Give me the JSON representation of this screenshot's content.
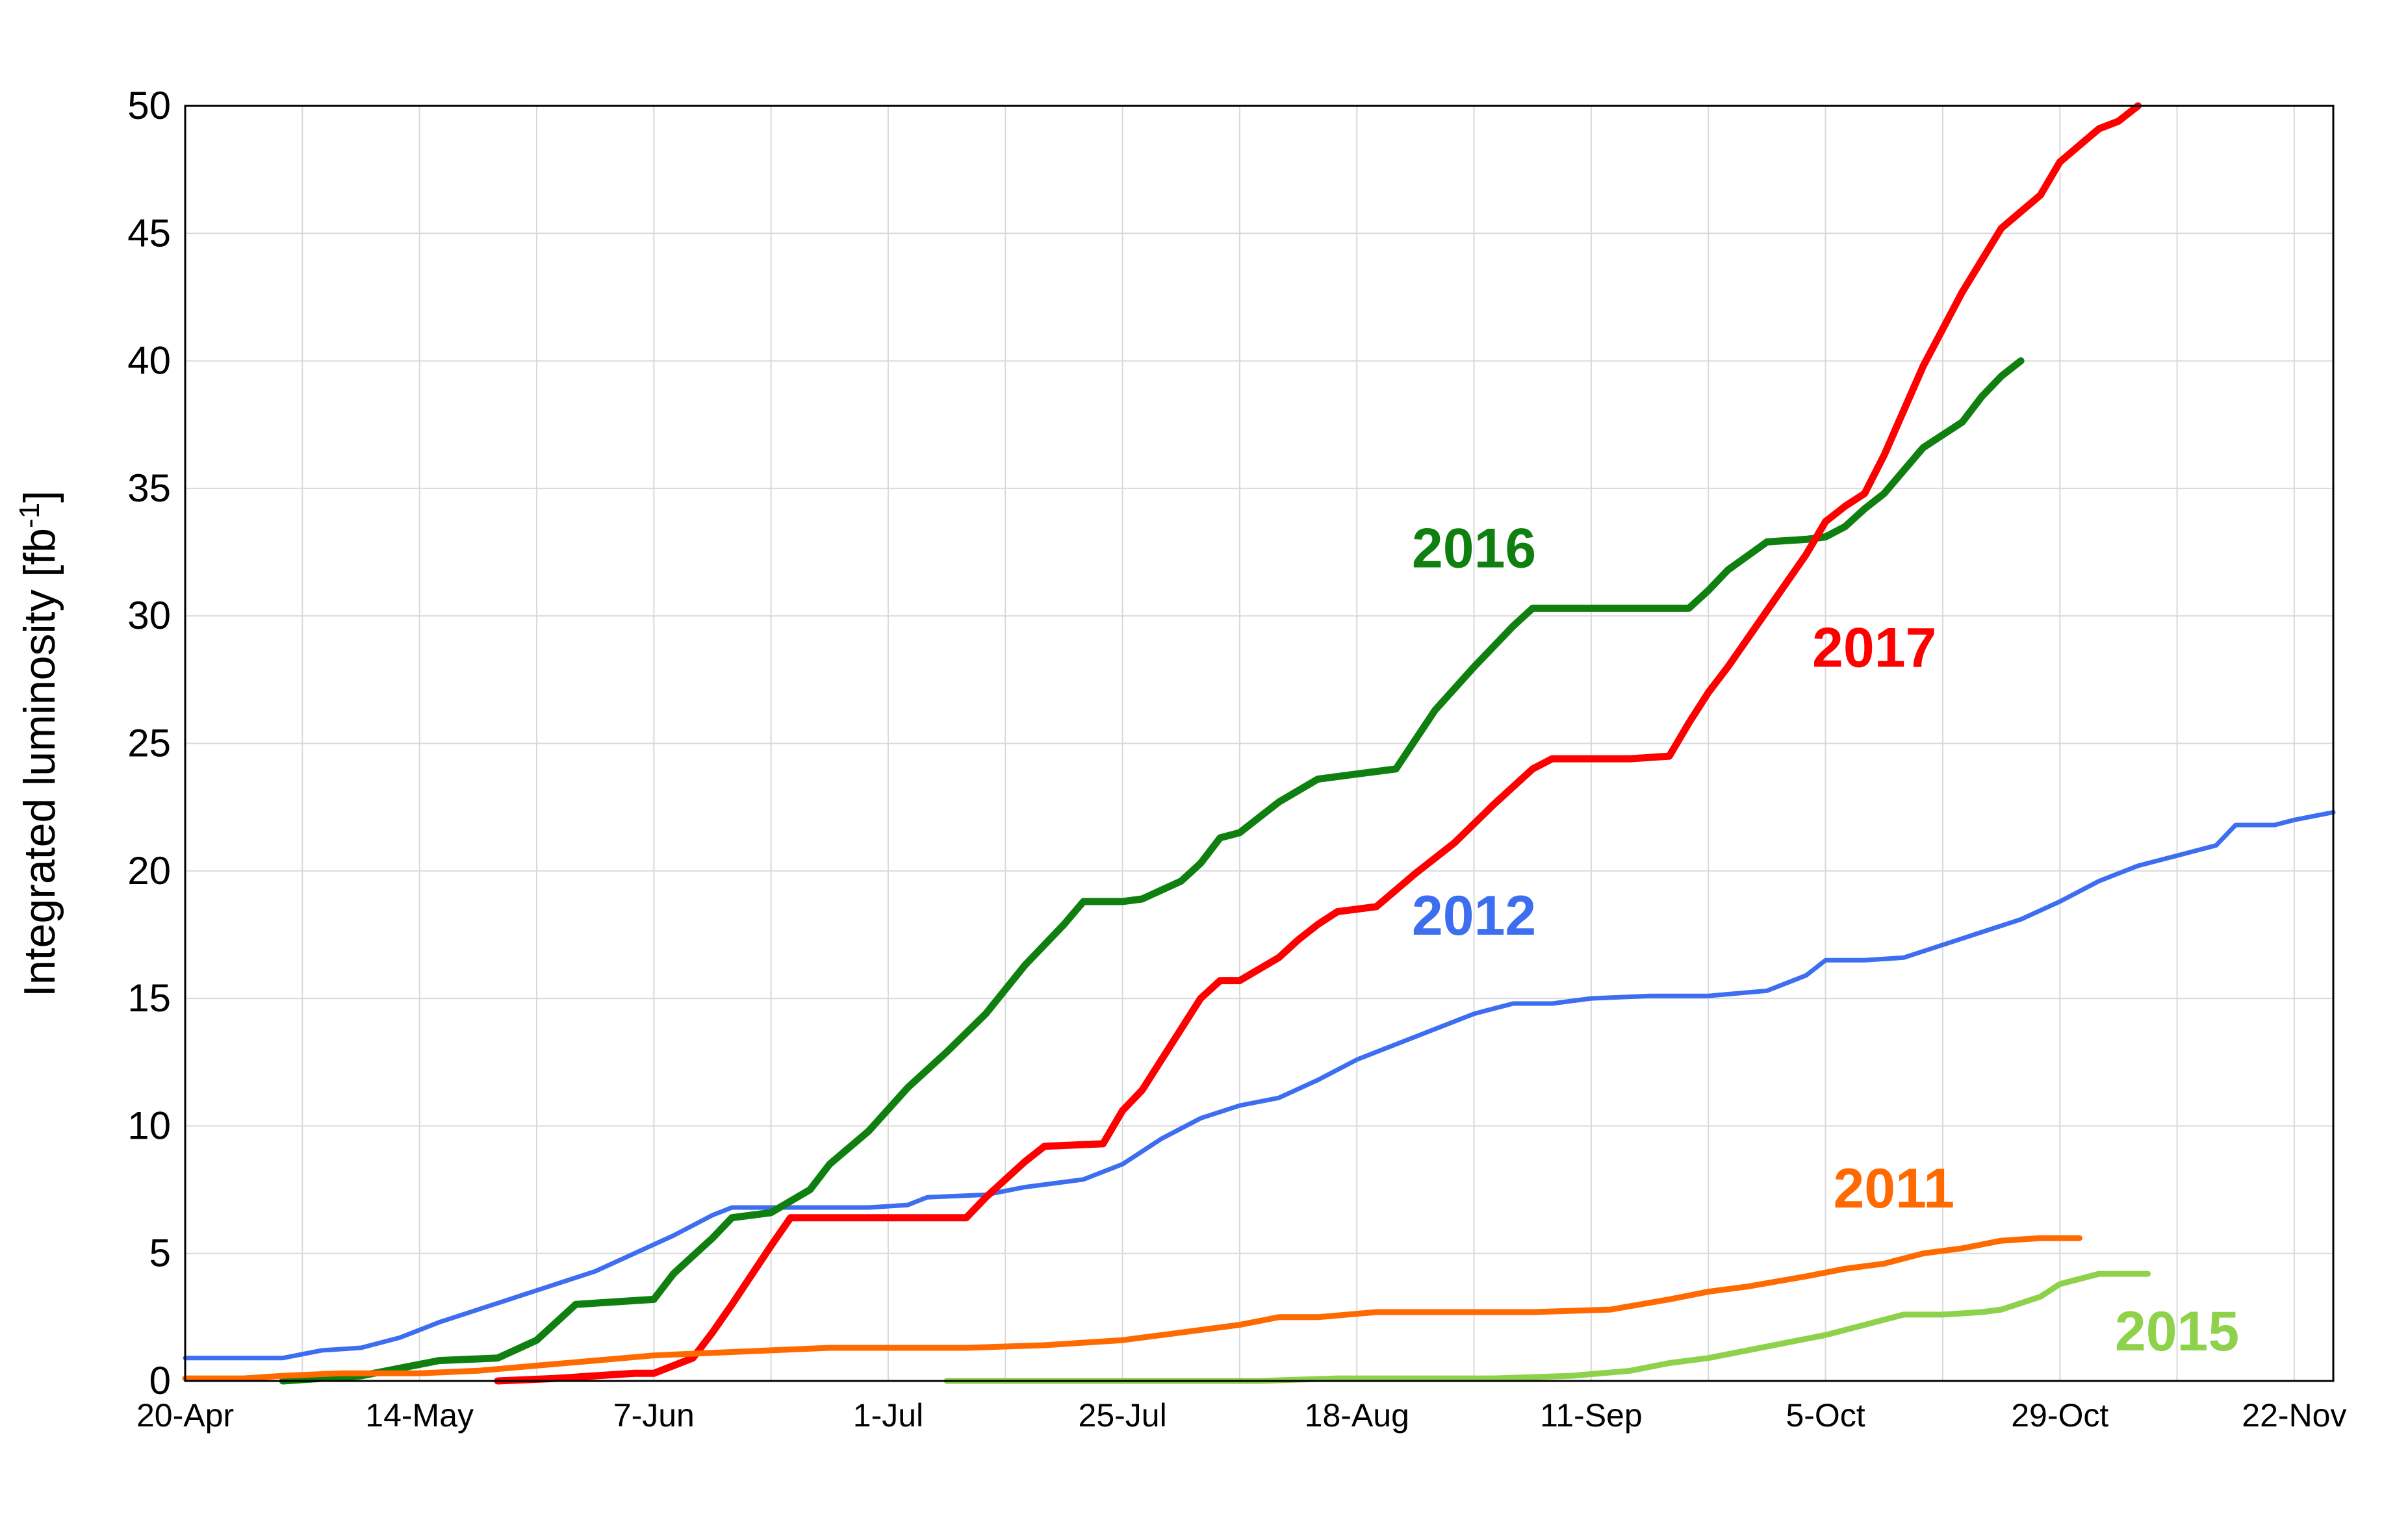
{
  "chart_data": {
    "type": "line",
    "title": "",
    "xlabel": "",
    "ylabel": "Integrated luminosity [fb",
    "ylabel_sup": "-1",
    "ylabel_close": "]",
    "x_unit": "day-of-year",
    "xlim": [
      110,
      330
    ],
    "ylim": [
      0,
      50
    ],
    "yticks": [
      0,
      5,
      10,
      15,
      20,
      25,
      30,
      35,
      40,
      45,
      50
    ],
    "xticks": [
      {
        "label": "20-Apr",
        "day": 110
      },
      {
        "label": "14-May",
        "day": 134
      },
      {
        "label": "7-Jun",
        "day": 158
      },
      {
        "label": "1-Jul",
        "day": 182
      },
      {
        "label": "25-Jul",
        "day": 206
      },
      {
        "label": "18-Aug",
        "day": 230
      },
      {
        "label": "11-Sep",
        "day": 254
      },
      {
        "label": "5-Oct",
        "day": 278
      },
      {
        "label": "29-Oct",
        "day": 302
      },
      {
        "label": "22-Nov",
        "day": 326
      }
    ],
    "grid": true,
    "legend": "none",
    "series": [
      {
        "name": "2012",
        "color": "#3d6ef0",
        "width": 7,
        "label_at": {
          "day": 242,
          "y": 17.5
        },
        "points": [
          [
            110,
            0.9
          ],
          [
            120,
            0.9
          ],
          [
            124,
            1.2
          ],
          [
            128,
            1.3
          ],
          [
            132,
            1.7
          ],
          [
            136,
            2.3
          ],
          [
            140,
            2.8
          ],
          [
            144,
            3.3
          ],
          [
            148,
            3.8
          ],
          [
            152,
            4.3
          ],
          [
            156,
            5.0
          ],
          [
            160,
            5.7
          ],
          [
            164,
            6.5
          ],
          [
            166,
            6.8
          ],
          [
            172,
            6.8
          ],
          [
            180,
            6.8
          ],
          [
            184,
            6.9
          ],
          [
            186,
            7.2
          ],
          [
            192,
            7.3
          ],
          [
            196,
            7.6
          ],
          [
            202,
            7.9
          ],
          [
            206,
            8.5
          ],
          [
            210,
            9.5
          ],
          [
            214,
            10.3
          ],
          [
            218,
            10.8
          ],
          [
            222,
            11.1
          ],
          [
            226,
            11.8
          ],
          [
            230,
            12.6
          ],
          [
            234,
            13.2
          ],
          [
            238,
            13.8
          ],
          [
            242,
            14.4
          ],
          [
            246,
            14.8
          ],
          [
            250,
            14.8
          ],
          [
            254,
            15.0
          ],
          [
            260,
            15.1
          ],
          [
            266,
            15.1
          ],
          [
            272,
            15.3
          ],
          [
            276,
            15.9
          ],
          [
            278,
            16.5
          ],
          [
            282,
            16.5
          ],
          [
            286,
            16.6
          ],
          [
            290,
            17.1
          ],
          [
            294,
            17.6
          ],
          [
            298,
            18.1
          ],
          [
            302,
            18.8
          ],
          [
            306,
            19.6
          ],
          [
            310,
            20.2
          ],
          [
            314,
            20.6
          ],
          [
            318,
            21.0
          ],
          [
            320,
            21.8
          ],
          [
            324,
            21.8
          ],
          [
            326,
            22.0
          ],
          [
            330,
            22.3
          ]
        ]
      },
      {
        "name": "2016",
        "color": "#0f7f10",
        "width": 11,
        "label_at": {
          "day": 242,
          "y": 31.9
        },
        "points": [
          [
            120,
            0.0
          ],
          [
            128,
            0.2
          ],
          [
            132,
            0.5
          ],
          [
            136,
            0.8
          ],
          [
            142,
            0.9
          ],
          [
            146,
            1.6
          ],
          [
            150,
            3.0
          ],
          [
            154,
            3.1
          ],
          [
            158,
            3.2
          ],
          [
            160,
            4.2
          ],
          [
            162,
            4.9
          ],
          [
            164,
            5.6
          ],
          [
            166,
            6.4
          ],
          [
            170,
            6.6
          ],
          [
            174,
            7.5
          ],
          [
            176,
            8.5
          ],
          [
            180,
            9.8
          ],
          [
            184,
            11.5
          ],
          [
            188,
            12.9
          ],
          [
            192,
            14.4
          ],
          [
            196,
            16.3
          ],
          [
            200,
            17.9
          ],
          [
            202,
            18.8
          ],
          [
            206,
            18.8
          ],
          [
            208,
            18.9
          ],
          [
            212,
            19.6
          ],
          [
            214,
            20.3
          ],
          [
            216,
            21.3
          ],
          [
            218,
            21.5
          ],
          [
            222,
            22.7
          ],
          [
            226,
            23.6
          ],
          [
            230,
            23.8
          ],
          [
            234,
            24.0
          ],
          [
            238,
            26.3
          ],
          [
            242,
            28.0
          ],
          [
            246,
            29.6
          ],
          [
            248,
            30.3
          ],
          [
            252,
            30.3
          ],
          [
            256,
            30.3
          ],
          [
            260,
            30.3
          ],
          [
            264,
            30.3
          ],
          [
            266,
            31.0
          ],
          [
            268,
            31.8
          ],
          [
            272,
            32.9
          ],
          [
            276,
            33.0
          ],
          [
            278,
            33.1
          ],
          [
            280,
            33.5
          ],
          [
            282,
            34.2
          ],
          [
            284,
            34.8
          ],
          [
            288,
            36.6
          ],
          [
            292,
            37.6
          ],
          [
            294,
            38.6
          ],
          [
            296,
            39.4
          ],
          [
            298,
            40.0
          ]
        ]
      },
      {
        "name": "2017",
        "color": "#ff0000",
        "width": 11,
        "label_at": {
          "day": 283,
          "y": 28.0
        },
        "points": [
          [
            142,
            0.0
          ],
          [
            148,
            0.1
          ],
          [
            152,
            0.2
          ],
          [
            156,
            0.3
          ],
          [
            158,
            0.3
          ],
          [
            162,
            0.9
          ],
          [
            164,
            1.9
          ],
          [
            166,
            3.0
          ],
          [
            170,
            5.3
          ],
          [
            172,
            6.4
          ],
          [
            176,
            6.4
          ],
          [
            182,
            6.4
          ],
          [
            190,
            6.4
          ],
          [
            192,
            7.2
          ],
          [
            196,
            8.6
          ],
          [
            198,
            9.2
          ],
          [
            204,
            9.3
          ],
          [
            206,
            10.6
          ],
          [
            208,
            11.4
          ],
          [
            210,
            12.6
          ],
          [
            214,
            15.0
          ],
          [
            216,
            15.7
          ],
          [
            218,
            15.7
          ],
          [
            222,
            16.6
          ],
          [
            224,
            17.3
          ],
          [
            226,
            17.9
          ],
          [
            228,
            18.4
          ],
          [
            232,
            18.6
          ],
          [
            236,
            19.9
          ],
          [
            240,
            21.1
          ],
          [
            244,
            22.6
          ],
          [
            248,
            24.0
          ],
          [
            250,
            24.4
          ],
          [
            254,
            24.4
          ],
          [
            258,
            24.4
          ],
          [
            262,
            24.5
          ],
          [
            264,
            25.8
          ],
          [
            266,
            27.0
          ],
          [
            268,
            28.0
          ],
          [
            272,
            30.2
          ],
          [
            276,
            32.4
          ],
          [
            278,
            33.7
          ],
          [
            280,
            34.3
          ],
          [
            282,
            34.8
          ],
          [
            284,
            36.3
          ],
          [
            288,
            39.8
          ],
          [
            292,
            42.7
          ],
          [
            296,
            45.2
          ],
          [
            300,
            46.5
          ],
          [
            302,
            47.8
          ],
          [
            306,
            49.1
          ],
          [
            308,
            49.4
          ],
          [
            310,
            50.0
          ]
        ]
      },
      {
        "name": "2011",
        "color": "#ff6a00",
        "width": 9,
        "label_at": {
          "day": 285,
          "y": 6.8
        },
        "points": [
          [
            110,
            0.1
          ],
          [
            116,
            0.1
          ],
          [
            120,
            0.2
          ],
          [
            126,
            0.3
          ],
          [
            134,
            0.3
          ],
          [
            140,
            0.4
          ],
          [
            146,
            0.6
          ],
          [
            152,
            0.8
          ],
          [
            158,
            1.0
          ],
          [
            164,
            1.1
          ],
          [
            170,
            1.2
          ],
          [
            176,
            1.3
          ],
          [
            182,
            1.3
          ],
          [
            190,
            1.3
          ],
          [
            198,
            1.4
          ],
          [
            206,
            1.6
          ],
          [
            212,
            1.9
          ],
          [
            218,
            2.2
          ],
          [
            222,
            2.5
          ],
          [
            226,
            2.5
          ],
          [
            232,
            2.7
          ],
          [
            240,
            2.7
          ],
          [
            248,
            2.7
          ],
          [
            256,
            2.8
          ],
          [
            262,
            3.2
          ],
          [
            266,
            3.5
          ],
          [
            270,
            3.7
          ],
          [
            276,
            4.1
          ],
          [
            280,
            4.4
          ],
          [
            284,
            4.6
          ],
          [
            288,
            5.0
          ],
          [
            292,
            5.2
          ],
          [
            296,
            5.5
          ],
          [
            300,
            5.6
          ],
          [
            304,
            5.6
          ]
        ]
      },
      {
        "name": "2015",
        "color": "#8ed14a",
        "width": 9,
        "label_at": {
          "day": 314,
          "y": 1.2
        },
        "points": [
          [
            188,
            0.0
          ],
          [
            196,
            0.0
          ],
          [
            204,
            0.0
          ],
          [
            212,
            0.0
          ],
          [
            220,
            0.0
          ],
          [
            228,
            0.1
          ],
          [
            236,
            0.1
          ],
          [
            244,
            0.1
          ],
          [
            252,
            0.2
          ],
          [
            258,
            0.4
          ],
          [
            262,
            0.7
          ],
          [
            266,
            0.9
          ],
          [
            270,
            1.2
          ],
          [
            274,
            1.5
          ],
          [
            278,
            1.8
          ],
          [
            282,
            2.2
          ],
          [
            286,
            2.6
          ],
          [
            290,
            2.6
          ],
          [
            294,
            2.7
          ],
          [
            296,
            2.8
          ],
          [
            300,
            3.3
          ],
          [
            302,
            3.8
          ],
          [
            304,
            4.0
          ],
          [
            306,
            4.2
          ],
          [
            308,
            4.2
          ],
          [
            311,
            4.2
          ]
        ]
      }
    ]
  }
}
